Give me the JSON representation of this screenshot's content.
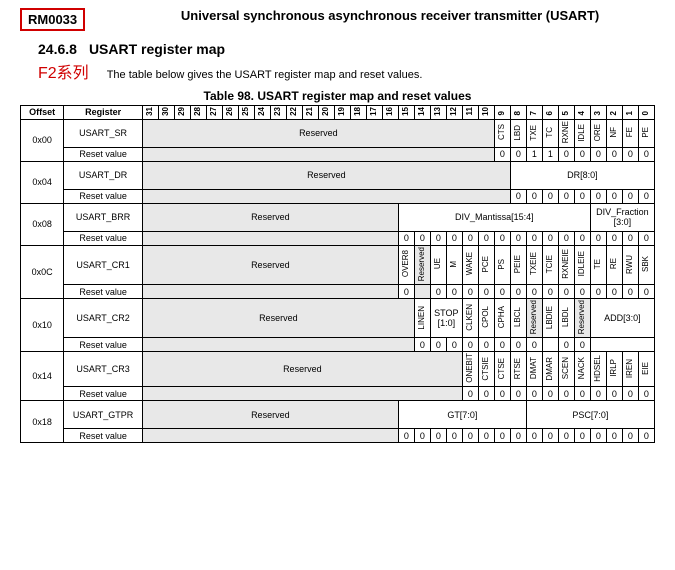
{
  "header": {
    "doc_id": "RM0033",
    "doc_title": "Universal synchronous asynchronous receiver transmitter (USART)"
  },
  "section": {
    "number": "24.6.8",
    "title": "USART register map",
    "annotation": "F2系列",
    "description": "The table below gives the USART register map and reset values."
  },
  "table": {
    "caption": "Table 98. USART register map and reset values",
    "headers": {
      "offset": "Offset",
      "register": "Register",
      "reset": "Reset value",
      "reserved": "Reserved"
    },
    "bits": [
      "31",
      "30",
      "29",
      "28",
      "27",
      "26",
      "25",
      "24",
      "23",
      "22",
      "21",
      "20",
      "19",
      "18",
      "17",
      "16",
      "15",
      "14",
      "13",
      "12",
      "11",
      "10",
      "9",
      "8",
      "7",
      "6",
      "5",
      "4",
      "3",
      "2",
      "1",
      "0"
    ],
    "rows": [
      {
        "offset": "0x00",
        "name": "USART_SR",
        "fields": [
          {
            "span": 22,
            "label": "Reserved",
            "reserved": true
          },
          {
            "span": 1,
            "label": "CTS",
            "v": true
          },
          {
            "span": 1,
            "label": "LBD",
            "v": true
          },
          {
            "span": 1,
            "label": "TXE",
            "v": true
          },
          {
            "span": 1,
            "label": "TC",
            "v": true
          },
          {
            "span": 1,
            "label": "RXNE",
            "v": true
          },
          {
            "span": 1,
            "label": "IDLE",
            "v": true
          },
          {
            "span": 1,
            "label": "ORE",
            "v": true
          },
          {
            "span": 1,
            "label": "NF",
            "v": true
          },
          {
            "span": 1,
            "label": "FE",
            "v": true
          },
          {
            "span": 1,
            "label": "PE",
            "v": true
          }
        ],
        "reset": [
          null,
          "0",
          "0",
          "1",
          "1",
          "0",
          "0",
          "0",
          "0",
          "0",
          "0"
        ]
      },
      {
        "offset": "0x04",
        "name": "USART_DR",
        "fields": [
          {
            "span": 23,
            "label": "Reserved",
            "reserved": true
          },
          {
            "span": 9,
            "label": "DR[8:0]"
          }
        ],
        "reset": [
          null,
          "0",
          "0",
          "0",
          "0",
          "0",
          "0",
          "0",
          "0",
          "0"
        ]
      },
      {
        "offset": "0x08",
        "name": "USART_BRR",
        "fields": [
          {
            "span": 16,
            "label": "Reserved",
            "reserved": true
          },
          {
            "span": 12,
            "label": "DIV_Mantissa[15:4]"
          },
          {
            "span": 4,
            "label": "DIV_Fraction [3:0]"
          }
        ],
        "reset": [
          null,
          "0",
          "0",
          "0",
          "0",
          "0",
          "0",
          "0",
          "0",
          "0",
          "0",
          "0",
          "0",
          "0",
          "0",
          "0",
          "0"
        ]
      },
      {
        "offset": "0x0C",
        "name": "USART_CR1",
        "fields": [
          {
            "span": 16,
            "label": "Reserved",
            "reserved": true
          },
          {
            "span": 1,
            "label": "OVER8",
            "v": true
          },
          {
            "span": 1,
            "label": "Reserved",
            "reserved": true,
            "v": true
          },
          {
            "span": 1,
            "label": "UE",
            "v": true
          },
          {
            "span": 1,
            "label": "M",
            "v": true
          },
          {
            "span": 1,
            "label": "WAKE",
            "v": true
          },
          {
            "span": 1,
            "label": "PCE",
            "v": true
          },
          {
            "span": 1,
            "label": "PS",
            "v": true
          },
          {
            "span": 1,
            "label": "PEIE",
            "v": true
          },
          {
            "span": 1,
            "label": "TXEIE",
            "v": true
          },
          {
            "span": 1,
            "label": "TCIE",
            "v": true
          },
          {
            "span": 1,
            "label": "RXNEIE",
            "v": true
          },
          {
            "span": 1,
            "label": "IDLEIE",
            "v": true
          },
          {
            "span": 1,
            "label": "TE",
            "v": true
          },
          {
            "span": 1,
            "label": "RE",
            "v": true
          },
          {
            "span": 1,
            "label": "RWU",
            "v": true
          },
          {
            "span": 1,
            "label": "SBK",
            "v": true
          }
        ],
        "reset": [
          null,
          "0",
          null,
          "0",
          "0",
          "0",
          "0",
          "0",
          "0",
          "0",
          "0",
          "0",
          "0",
          "0",
          "0",
          "0",
          "0"
        ]
      },
      {
        "offset": "0x10",
        "name": "USART_CR2",
        "fields": [
          {
            "span": 17,
            "label": "Reserved",
            "reserved": true
          },
          {
            "span": 1,
            "label": "LINEN",
            "v": true
          },
          {
            "span": 2,
            "label": "STOP [1:0]"
          },
          {
            "span": 1,
            "label": "CLKEN",
            "v": true
          },
          {
            "span": 1,
            "label": "CPOL",
            "v": true
          },
          {
            "span": 1,
            "label": "CPHA",
            "v": true
          },
          {
            "span": 1,
            "label": "LBCL",
            "v": true
          },
          {
            "span": 1,
            "label": "Reserved",
            "reserved": true,
            "v": true
          },
          {
            "span": 1,
            "label": "LBDIE",
            "v": true
          },
          {
            "span": 1,
            "label": "LBDL",
            "v": true
          },
          {
            "span": 1,
            "label": "Reserved",
            "reserved": true,
            "v": true
          },
          {
            "span": 4,
            "label": "ADD[3:0]"
          }
        ],
        "reset": [
          null,
          "0",
          "0",
          "0",
          "0",
          "0",
          "0",
          "0",
          null,
          "0",
          "0",
          null,
          "0",
          "0",
          "0",
          "0"
        ]
      },
      {
        "offset": "0x14",
        "name": "USART_CR3",
        "fields": [
          {
            "span": 20,
            "label": "Reserved",
            "reserved": true
          },
          {
            "span": 1,
            "label": "ONEBIT",
            "v": true
          },
          {
            "span": 1,
            "label": "CTSIE",
            "v": true
          },
          {
            "span": 1,
            "label": "CTSE",
            "v": true
          },
          {
            "span": 1,
            "label": "RTSE",
            "v": true
          },
          {
            "span": 1,
            "label": "DMAT",
            "v": true
          },
          {
            "span": 1,
            "label": "DMAR",
            "v": true
          },
          {
            "span": 1,
            "label": "SCEN",
            "v": true
          },
          {
            "span": 1,
            "label": "NACK",
            "v": true
          },
          {
            "span": 1,
            "label": "HDSEL",
            "v": true
          },
          {
            "span": 1,
            "label": "IRLP",
            "v": true
          },
          {
            "span": 1,
            "label": "IREN",
            "v": true
          },
          {
            "span": 1,
            "label": "EIE",
            "v": true
          }
        ],
        "reset": [
          null,
          "0",
          "0",
          "0",
          "0",
          "0",
          "0",
          "0",
          "0",
          "0",
          "0",
          "0",
          "0"
        ]
      },
      {
        "offset": "0x18",
        "name": "USART_GTPR",
        "fields": [
          {
            "span": 16,
            "label": "Reserved",
            "reserved": true
          },
          {
            "span": 8,
            "label": "GT[7:0]"
          },
          {
            "span": 8,
            "label": "PSC[7:0]"
          }
        ],
        "reset": [
          null,
          "0",
          "0",
          "0",
          "0",
          "0",
          "0",
          "0",
          "0",
          "0",
          "0",
          "0",
          "0",
          "0",
          "0",
          "0",
          "0"
        ]
      }
    ]
  }
}
